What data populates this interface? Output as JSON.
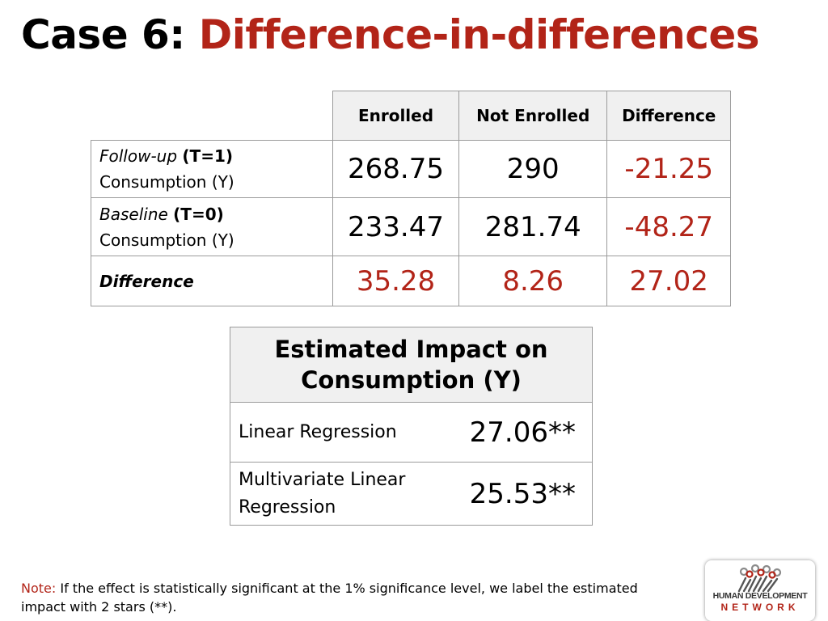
{
  "title": {
    "prefix": "Case 6:",
    "accent": "Difference-in-differences"
  },
  "did_table": {
    "headers": [
      "Enrolled",
      "Not Enrolled",
      "Difference"
    ],
    "rows": [
      {
        "label_italic": "Follow-up",
        "label_bold": "(T=1)",
        "label_line2": "Consumption (Y)",
        "enrolled": "268.75",
        "not_enrolled": "290",
        "difference": "-21.25"
      },
      {
        "label_italic": "Baseline",
        "label_bold": "(T=0)",
        "label_line2": "Consumption (Y)",
        "enrolled": "233.47",
        "not_enrolled": "281.74",
        "difference": "-48.27"
      },
      {
        "label": "Difference",
        "enrolled": "35.28",
        "not_enrolled": "8.26",
        "difference": "27.02"
      }
    ]
  },
  "impact_table": {
    "header_line1": "Estimated Impact on",
    "header_line2": "Consumption (Y)",
    "rows": [
      {
        "label": "Linear Regression",
        "value": "27.06**"
      },
      {
        "label_line1": "Multivariate Linear",
        "label_line2": "Regression",
        "value": "25.53**"
      }
    ]
  },
  "note": {
    "label": "Note:",
    "text": " If the effect is statistically significant at the 1% significance level, we label the estimated impact with 2 stars (**)."
  },
  "logo": {
    "line1": "HUMAN DEVELOPMENT",
    "line2": "NETWORK"
  },
  "colors": {
    "accent": "#b22418",
    "header_bg": "#f0f0f0",
    "border": "#9b9b9b"
  }
}
